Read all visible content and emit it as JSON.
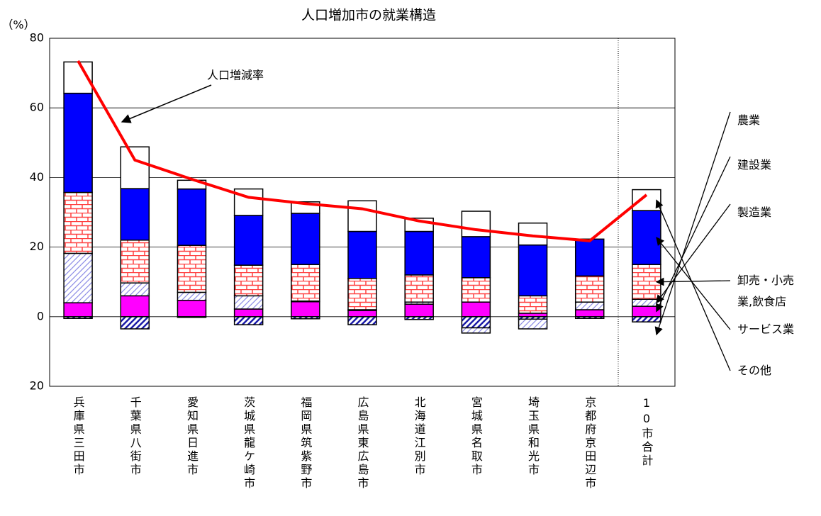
{
  "chart_data": {
    "type": "stacked_bar_line",
    "title": "人口増加市の就業構造",
    "y_label": "（%）",
    "categories": [
      "兵庫県三田市",
      "千葉県八街市",
      "愛知県日進市",
      "茨城県龍ケ崎市",
      "福岡県筑紫野市",
      "広島県東広島市",
      "北海道江別市",
      "宮城県名取市",
      "埼玉県和光市",
      "京都府京田辺市",
      "10市合計"
    ],
    "series": [
      {
        "name": "農業",
        "color": "#1a1aa8",
        "fill_style": "hatch",
        "values": [
          -0.5,
          -3.5,
          -0.2,
          -2.3,
          -0.6,
          -2.3,
          -0.8,
          -3.2,
          -0.7,
          -0.5,
          -1.5
        ]
      },
      {
        "name": "建設業",
        "color": "#ff00ff",
        "fill_style": "solid",
        "values": [
          4,
          6,
          4.7,
          2.2,
          4.3,
          1.8,
          3.6,
          4.2,
          1,
          2,
          3
        ]
      },
      {
        "name": "製造業",
        "color": "#8c8ce6",
        "fill_style": "hatch",
        "values": [
          14.2,
          3.7,
          2.3,
          3.8,
          0.2,
          0.2,
          0.6,
          -1.5,
          -2.8,
          2.2,
          2
        ]
      },
      {
        "name": "卸売・小売業,飲食店",
        "color": "#ff4040",
        "fill_style": "brick",
        "values": [
          17.5,
          12.3,
          13.5,
          8.8,
          10.5,
          9,
          7.8,
          7,
          5,
          7.5,
          10
        ]
      },
      {
        "name": "サービス業",
        "color": "#0000ff",
        "fill_style": "solid",
        "values": [
          28.5,
          14.8,
          16.2,
          14.3,
          14.7,
          13.5,
          12.5,
          11.8,
          14.6,
          10.6,
          15.5
        ]
      },
      {
        "name": "その他",
        "color": "#ffffff",
        "fill_style": "solid",
        "values": [
          9,
          12,
          2.5,
          7.6,
          3.3,
          8.8,
          3.8,
          7.3,
          6.3,
          0,
          6
        ]
      }
    ],
    "line": {
      "name": "人口増減率",
      "color": "#ff0000",
      "values": [
        73.5,
        45,
        39.5,
        34.3,
        32.5,
        31,
        27.5,
        25,
        23.2,
        21.8,
        35
      ]
    },
    "ylim": [
      -20,
      80
    ],
    "yticks": [
      {
        "value": -20,
        "label": "20"
      },
      0,
      20,
      40,
      60,
      80
    ],
    "grid": true
  }
}
